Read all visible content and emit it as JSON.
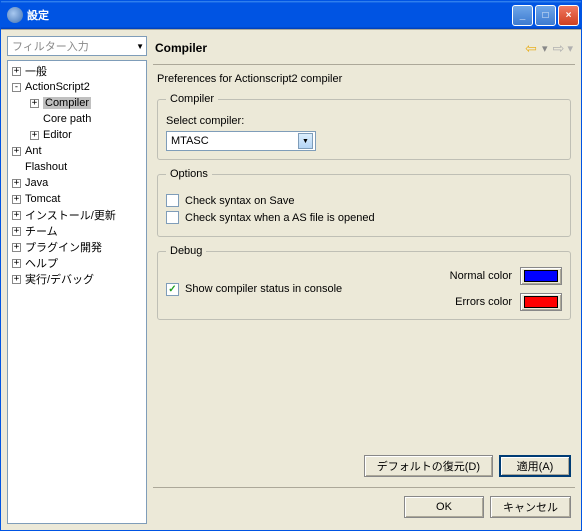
{
  "window": {
    "title": "設定"
  },
  "sidebar": {
    "filter_placeholder": "フィルター入力",
    "items": [
      {
        "label": "一般",
        "depth": 0,
        "expandable": true,
        "expanded": false
      },
      {
        "label": "ActionScript2",
        "depth": 0,
        "expandable": true,
        "expanded": true
      },
      {
        "label": "Compiler",
        "depth": 1,
        "expandable": true,
        "expanded": false,
        "selected": true
      },
      {
        "label": "Core path",
        "depth": 1,
        "expandable": false
      },
      {
        "label": "Editor",
        "depth": 1,
        "expandable": true,
        "expanded": false
      },
      {
        "label": "Ant",
        "depth": 0,
        "expandable": true,
        "expanded": false
      },
      {
        "label": "Flashout",
        "depth": 0,
        "expandable": false
      },
      {
        "label": "Java",
        "depth": 0,
        "expandable": true,
        "expanded": false
      },
      {
        "label": "Tomcat",
        "depth": 0,
        "expandable": true,
        "expanded": false
      },
      {
        "label": "インストール/更新",
        "depth": 0,
        "expandable": true,
        "expanded": false
      },
      {
        "label": "チーム",
        "depth": 0,
        "expandable": true,
        "expanded": false
      },
      {
        "label": "プラグイン開発",
        "depth": 0,
        "expandable": true,
        "expanded": false
      },
      {
        "label": "ヘルプ",
        "depth": 0,
        "expandable": true,
        "expanded": false
      },
      {
        "label": "実行/デバッグ",
        "depth": 0,
        "expandable": true,
        "expanded": false
      }
    ]
  },
  "content": {
    "title": "Compiler",
    "subtitle": "Preferences for Actionscript2 compiler",
    "compiler_group": {
      "legend": "Compiler",
      "select_label": "Select compiler:",
      "selected": "MTASC"
    },
    "options_group": {
      "legend": "Options",
      "check_on_save": {
        "label": "Check syntax on Save",
        "checked": false
      },
      "check_on_open": {
        "label": "Check syntax when a AS file is opened",
        "checked": false
      }
    },
    "debug_group": {
      "legend": "Debug",
      "show_in_console": {
        "label": "Show compiler status in console",
        "checked": true
      },
      "normal_color": {
        "label": "Normal color",
        "value": "#0000ff"
      },
      "errors_color": {
        "label": "Errors color",
        "value": "#ff0000"
      }
    },
    "restore_defaults_label": "デフォルトの復元(D)",
    "apply_label": "適用(A)"
  },
  "buttons": {
    "ok": "OK",
    "cancel": "キャンセル"
  },
  "colors": {
    "titlebar_text": "#ffffff",
    "body_bg": "#ece9d8",
    "input_border": "#7f9db9",
    "arrow_back": "#e8b020",
    "arrow_fwd_disabled": "#b0b0b0"
  }
}
